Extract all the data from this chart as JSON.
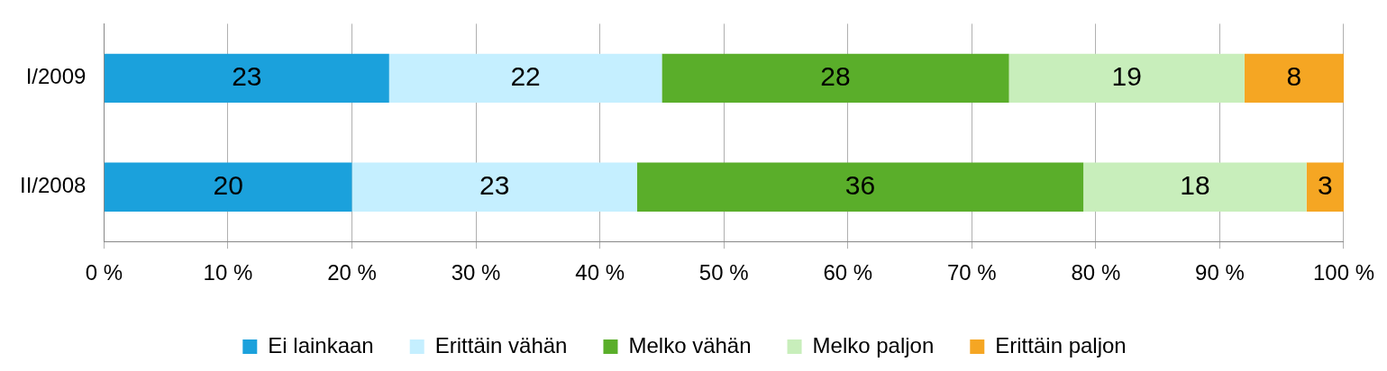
{
  "chart_data": {
    "type": "bar",
    "orientation": "horizontal",
    "stacked": true,
    "categories": [
      "I/2009",
      "II/2008"
    ],
    "series": [
      {
        "name": "Ei lainkaan",
        "color": "#1ba1dc",
        "values": [
          23,
          20
        ]
      },
      {
        "name": "Erittäin vähän",
        "color": "#c5efff",
        "values": [
          22,
          23
        ]
      },
      {
        "name": "Melko vähän",
        "color": "#5aae2a",
        "values": [
          28,
          36
        ]
      },
      {
        "name": "Melko paljon",
        "color": "#c8eebb",
        "values": [
          19,
          18
        ]
      },
      {
        "name": "Erittäin paljon",
        "color": "#f5a623",
        "values": [
          8,
          3
        ]
      }
    ],
    "xlim": [
      0,
      100
    ],
    "xticks": [
      {
        "value": 0,
        "label": "0 %"
      },
      {
        "value": 10,
        "label": "10 %"
      },
      {
        "value": 20,
        "label": "20 %"
      },
      {
        "value": 30,
        "label": "30 %"
      },
      {
        "value": 40,
        "label": "40 %"
      },
      {
        "value": 50,
        "label": "50 %"
      },
      {
        "value": 60,
        "label": "60 %"
      },
      {
        "value": 70,
        "label": "70 %"
      },
      {
        "value": 80,
        "label": "80 %"
      },
      {
        "value": 90,
        "label": "90 %"
      },
      {
        "value": 100,
        "label": "100 %"
      }
    ],
    "grid": "x",
    "legend": "bottom",
    "data_labels": true
  }
}
